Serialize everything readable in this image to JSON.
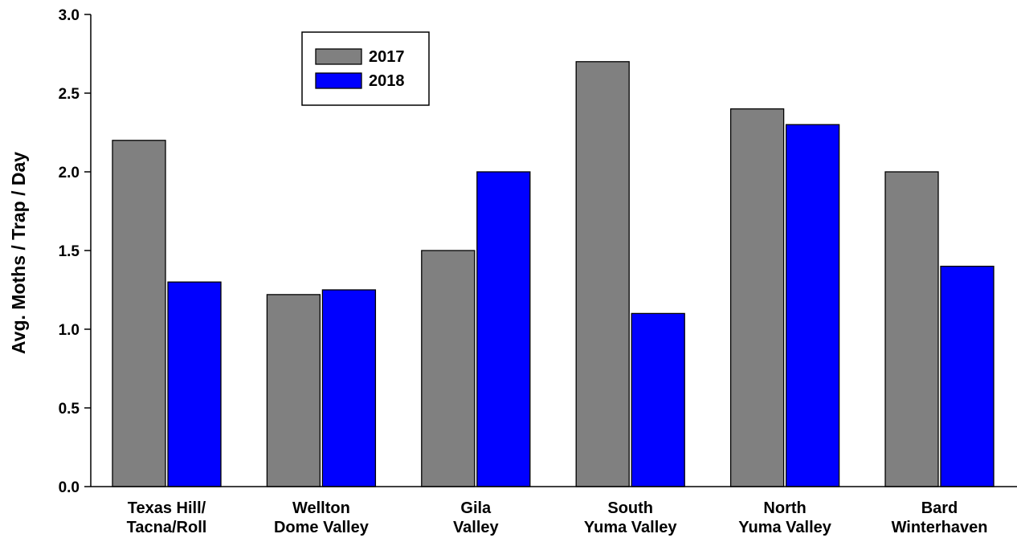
{
  "chart_data": {
    "type": "bar",
    "categories": [
      [
        "Texas Hill/",
        "Tacna/Roll"
      ],
      [
        "Wellton",
        "Dome Valley"
      ],
      [
        "Gila",
        "Valley"
      ],
      [
        "South",
        "Yuma Valley"
      ],
      [
        "North",
        "Yuma Valley"
      ],
      [
        "Bard",
        "Winterhaven"
      ]
    ],
    "series": [
      {
        "name": "2017",
        "color": "#808080",
        "values": [
          2.2,
          1.22,
          1.5,
          2.7,
          2.4,
          2.0
        ]
      },
      {
        "name": "2018",
        "color": "#0000ff",
        "values": [
          1.3,
          1.25,
          2.0,
          1.1,
          2.3,
          1.4
        ]
      }
    ],
    "title": "",
    "xlabel": "",
    "ylabel": "Avg. Moths / Trap / Day",
    "ylim": [
      0,
      3.0
    ],
    "yticks": [
      0,
      0.5,
      1.0,
      1.5,
      2.0,
      2.5,
      3.0
    ],
    "ytick_labels": [
      "0.0",
      "0.5",
      "1.0",
      "1.5",
      "2.0",
      "2.5",
      "3.0"
    ],
    "grid": false,
    "legend_position": "top-left"
  }
}
